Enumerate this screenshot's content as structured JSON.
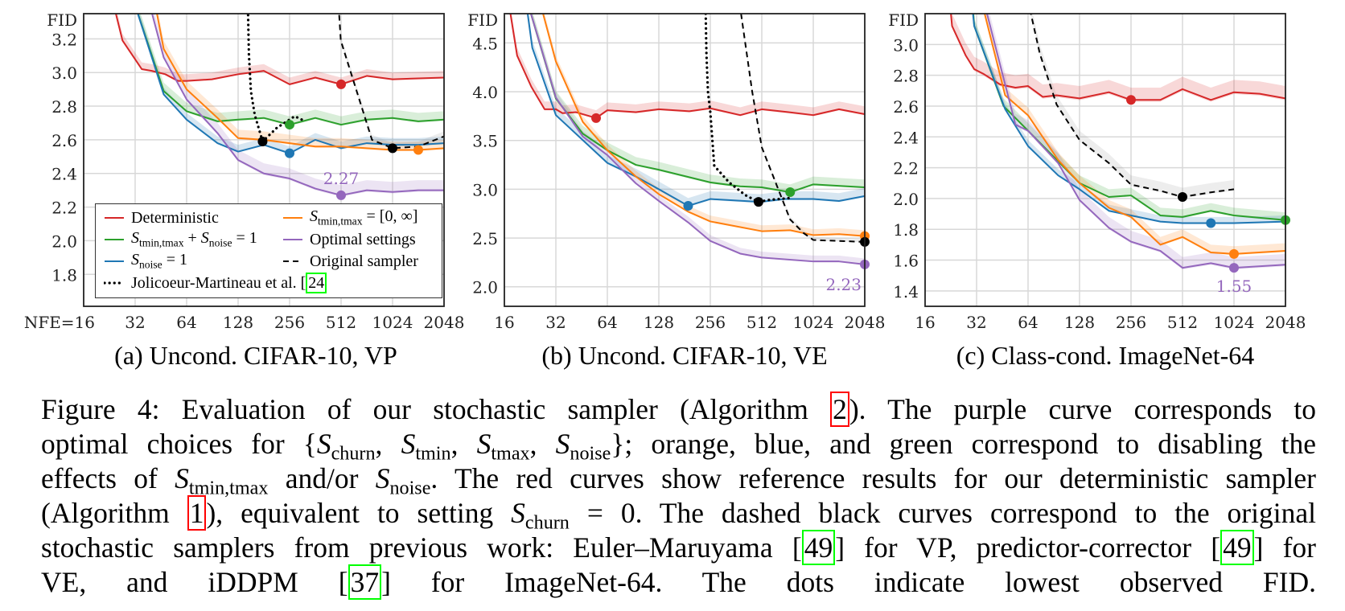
{
  "chart_data": [
    {
      "type": "line",
      "subcaption": "(a) Uncond. CIFAR-10, VP",
      "ylabel": "FID",
      "xscale": "log2",
      "xlim": [
        16,
        2048
      ],
      "ylim": [
        1.61,
        3.35
      ],
      "xticks": [
        16,
        32,
        64,
        128,
        256,
        512,
        1024,
        2048
      ],
      "xtick_labels": [
        "NFE=16",
        "32",
        "64",
        "128",
        "256",
        "512",
        "1024",
        "2048"
      ],
      "yticks": [
        1.8,
        2.0,
        2.2,
        2.4,
        2.6,
        2.8,
        3.0,
        3.2
      ],
      "ytick_labels": [
        "1.8",
        "2.0",
        "2.2",
        "2.4",
        "2.6",
        "2.8",
        "3.0",
        "3.2"
      ],
      "grid": true,
      "legend": "bottom",
      "series": [
        {
          "key": "red",
          "x": [
            24,
            27,
            35,
            40,
            48,
            57,
            64,
            90,
            128,
            181,
            256,
            362,
            512,
            724,
            1024,
            2048
          ],
          "y": [
            3.4,
            3.19,
            3.02,
            3.01,
            2.99,
            2.95,
            2.95,
            2.96,
            2.99,
            3.01,
            2.93,
            2.97,
            2.93,
            2.98,
            2.96,
            2.97
          ],
          "min": [
            512,
            2.93
          ],
          "band": 0.04
        },
        {
          "key": "green",
          "x": [
            32,
            47,
            64,
            97,
            128,
            181,
            256,
            362,
            512,
            724,
            1024,
            1448,
            2048
          ],
          "y": [
            3.4,
            2.89,
            2.77,
            2.71,
            2.72,
            2.73,
            2.69,
            2.73,
            2.69,
            2.72,
            2.73,
            2.71,
            2.72
          ],
          "min": [
            256,
            2.69
          ],
          "band": 0.05
        },
        {
          "key": "blue",
          "x": [
            32,
            47,
            64,
            97,
            128,
            181,
            256,
            362,
            512,
            724,
            1024,
            1448,
            2048
          ],
          "y": [
            3.4,
            2.87,
            2.72,
            2.58,
            2.53,
            2.57,
            2.52,
            2.6,
            2.55,
            2.58,
            2.57,
            2.57,
            2.58
          ],
          "min": [
            256,
            2.52
          ],
          "band": 0.04
        },
        {
          "key": "orange",
          "x": [
            42,
            47,
            64,
            97,
            128,
            181,
            256,
            362,
            512,
            724,
            1024,
            1448,
            2048
          ],
          "y": [
            3.4,
            3.14,
            2.9,
            2.73,
            2.61,
            2.6,
            2.58,
            2.56,
            2.56,
            2.55,
            2.54,
            2.54,
            2.55
          ],
          "min": [
            1448,
            2.54
          ],
          "band": 0.05
        },
        {
          "key": "purple",
          "x": [
            39,
            47,
            64,
            97,
            128,
            181,
            256,
            362,
            512,
            724,
            1024,
            1448,
            2048
          ],
          "y": [
            3.4,
            3.09,
            2.84,
            2.64,
            2.48,
            2.4,
            2.37,
            2.31,
            2.27,
            2.3,
            2.29,
            2.3,
            2.3
          ],
          "min": [
            512,
            2.27
          ],
          "band": 0.06
        },
        {
          "key": "dotted",
          "x": [
            146,
            148,
            152,
            160,
            178,
            215,
            274,
            317
          ],
          "y": [
            3.4,
            3.11,
            2.89,
            2.75,
            2.59,
            2.67,
            2.74,
            2.71
          ],
          "min": [
            178,
            2.59
          ],
          "band": 0
        },
        {
          "key": "dashed",
          "x": [
            495,
            510,
            776,
            1024,
            1448,
            2048
          ],
          "y": [
            3.4,
            3.19,
            2.6,
            2.55,
            2.56,
            2.62
          ],
          "min": [
            1024,
            2.55
          ],
          "band": 0.03
        }
      ],
      "annotation": {
        "text": "2.27",
        "x": 512,
        "y": 2.27,
        "position": "above"
      }
    },
    {
      "type": "line",
      "subcaption": "(b) Uncond. CIFAR-10, VE",
      "ylabel": "FID",
      "xscale": "log2",
      "xlim": [
        16,
        2048
      ],
      "ylim": [
        1.8,
        4.8
      ],
      "xticks": [
        16,
        32,
        64,
        128,
        256,
        512,
        1024,
        2048
      ],
      "xtick_labels": [
        "16",
        "32",
        "64",
        "128",
        "256",
        "512",
        "1024",
        "2048"
      ],
      "yticks": [
        2.0,
        2.5,
        3.0,
        3.5,
        4.0,
        4.5
      ],
      "ytick_labels": [
        "2.0",
        "2.5",
        "3.0",
        "3.5",
        "4.0",
        "4.5"
      ],
      "grid": true,
      "series": [
        {
          "key": "red",
          "x": [
            17,
            19,
            23,
            27.5,
            32,
            35,
            42,
            55,
            64,
            94,
            128,
            193,
            256,
            383,
            512,
            734,
            1024,
            1448,
            2048
          ],
          "y": [
            4.9,
            4.37,
            4.05,
            3.82,
            3.82,
            3.78,
            3.79,
            3.73,
            3.81,
            3.79,
            3.82,
            3.8,
            3.83,
            3.76,
            3.82,
            3.79,
            3.76,
            3.82,
            3.77
          ],
          "min": [
            55,
            3.73
          ],
          "band": 0.08
        },
        {
          "key": "green",
          "x": [
            22,
            32,
            46,
            64,
            94,
            128,
            256,
            383,
            512,
            750,
            1024,
            2048
          ],
          "y": [
            4.9,
            3.93,
            3.57,
            3.4,
            3.25,
            3.2,
            3.07,
            3.03,
            3.02,
            2.97,
            3.05,
            3.02
          ],
          "min": [
            750,
            2.97
          ],
          "band": 0.08
        },
        {
          "key": "blue",
          "x": [
            21.5,
            23.3,
            32,
            64,
            94,
            128,
            190,
            256,
            500,
            700,
            1024,
            1448,
            2048
          ],
          "y": [
            4.9,
            4.45,
            3.76,
            3.27,
            3.13,
            3.0,
            2.83,
            2.9,
            2.87,
            2.9,
            2.9,
            2.88,
            2.93
          ],
          "min": [
            190,
            2.83
          ],
          "band": 0.08
        },
        {
          "key": "orange",
          "x": [
            26,
            32,
            46,
            64,
            94,
            128,
            190,
            256,
            512,
            750,
            1024,
            1448,
            2048
          ],
          "y": [
            4.9,
            4.31,
            3.69,
            3.4,
            3.13,
            2.95,
            2.77,
            2.67,
            2.57,
            2.58,
            2.53,
            2.54,
            2.52
          ],
          "min": [
            2048,
            2.52
          ],
          "band": 0.06
        },
        {
          "key": "purple",
          "x": [
            22,
            32,
            46,
            64,
            94,
            128,
            190,
            256,
            383,
            512,
            1024,
            1448,
            2048
          ],
          "y": [
            4.9,
            3.94,
            3.54,
            3.35,
            3.06,
            2.88,
            2.66,
            2.47,
            2.34,
            2.3,
            2.26,
            2.26,
            2.23
          ],
          "min": [
            2048,
            2.23
          ],
          "band": 0.06
        },
        {
          "key": "dotted",
          "x": [
            240,
            243,
            248,
            256,
            270,
            330,
            410,
            490,
            560,
            750
          ],
          "y": [
            4.9,
            4.39,
            4.0,
            3.79,
            3.24,
            3.07,
            2.94,
            2.87,
            2.89,
            2.91
          ],
          "min": [
            490,
            2.87
          ],
          "band": 0
        },
        {
          "key": "dashed",
          "x": [
            380,
            450,
            512,
            750,
            900,
            1024,
            2048
          ],
          "y": [
            4.9,
            4.0,
            3.43,
            2.69,
            2.55,
            2.48,
            2.46
          ],
          "min": [
            2048,
            2.46
          ],
          "band": 0.03
        }
      ],
      "annotation": {
        "text": "2.23",
        "x": 2048,
        "y": 2.23,
        "position": "below-left"
      }
    },
    {
      "type": "line",
      "subcaption": "(c) Class-cond. ImageNet-64",
      "ylabel": "FID",
      "xscale": "log2",
      "xlim": [
        16,
        2048
      ],
      "ylim": [
        1.3,
        3.2
      ],
      "xticks": [
        16,
        32,
        64,
        128,
        256,
        512,
        1024,
        2048
      ],
      "xtick_labels": [
        "16",
        "32",
        "64",
        "128",
        "256",
        "512",
        "1024",
        "2048"
      ],
      "yticks": [
        1.4,
        1.6,
        1.8,
        2.0,
        2.2,
        2.4,
        2.6,
        2.8,
        3.0
      ],
      "ytick_labels": [
        "1.4",
        "1.6",
        "1.8",
        "2.0",
        "2.2",
        "2.4",
        "2.6",
        "2.8",
        "3.0"
      ],
      "grid": true,
      "series": [
        {
          "key": "red",
          "x": [
            22,
            23,
            27.6,
            31,
            35,
            44,
            54,
            64,
            78,
            94,
            128,
            190,
            256,
            380,
            512,
            750,
            1024,
            1448,
            2048
          ],
          "y": [
            3.35,
            3.12,
            2.93,
            2.84,
            2.81,
            2.74,
            2.72,
            2.73,
            2.66,
            2.67,
            2.65,
            2.69,
            2.64,
            2.64,
            2.71,
            2.64,
            2.69,
            2.68,
            2.65
          ],
          "min": [
            256,
            2.64
          ],
          "band": 0.08
        },
        {
          "key": "green",
          "x": [
            30,
            31,
            46,
            64,
            128,
            190,
            256,
            380,
            512,
            750,
            1024,
            2048
          ],
          "y": [
            3.35,
            3.12,
            2.6,
            2.44,
            2.1,
            2.01,
            2.02,
            1.89,
            1.88,
            1.92,
            1.89,
            1.86
          ],
          "min": [
            2048,
            1.86
          ],
          "band": 0.05
        },
        {
          "key": "blue",
          "x": [
            29.5,
            31,
            47,
            64,
            96,
            128,
            190,
            256,
            380,
            512,
            750,
            1024,
            2048
          ],
          "y": [
            3.35,
            3.12,
            2.58,
            2.34,
            2.15,
            2.06,
            1.92,
            1.89,
            1.85,
            1.84,
            1.84,
            1.84,
            1.85
          ],
          "min": [
            750,
            1.84
          ],
          "band": 0.04
        },
        {
          "key": "orange",
          "x": [
            33,
            47,
            64,
            96,
            128,
            190,
            256,
            380,
            512,
            750,
            1024,
            2048
          ],
          "y": [
            3.35,
            2.67,
            2.54,
            2.25,
            2.1,
            1.94,
            1.88,
            1.7,
            1.75,
            1.65,
            1.64,
            1.66
          ],
          "min": [
            1024,
            1.64
          ],
          "band": 0.05
        },
        {
          "key": "purple",
          "x": [
            34,
            54,
            64,
            96,
            128,
            190,
            256,
            380,
            512,
            750,
            1024,
            2048
          ],
          "y": [
            3.35,
            2.48,
            2.44,
            2.23,
            1.99,
            1.81,
            1.72,
            1.66,
            1.55,
            1.58,
            1.55,
            1.57
          ],
          "min": [
            1024,
            1.55
          ],
          "band": 0.07
        },
        {
          "key": "dashed",
          "x": [
            62,
            75,
            94,
            128,
            190,
            256,
            380,
            512,
            750,
            1024
          ],
          "y": [
            3.35,
            2.94,
            2.61,
            2.38,
            2.23,
            2.09,
            2.05,
            2.01,
            2.04,
            2.06
          ],
          "min": [
            512,
            2.01
          ],
          "band": 0.06
        }
      ],
      "annotation": {
        "text": "1.55",
        "x": 1024,
        "y": 1.55,
        "position": "below"
      }
    }
  ],
  "styles": {
    "red": {
      "color": "#d62728",
      "dash": "solid"
    },
    "green": {
      "color": "#2ca02c",
      "dash": "solid"
    },
    "blue": {
      "color": "#1f77b4",
      "dash": "solid"
    },
    "orange": {
      "color": "#ff7f0e",
      "dash": "solid"
    },
    "purple": {
      "color": "#9467bd",
      "dash": "solid"
    },
    "dotted": {
      "color": "#000000",
      "dash": "dotted"
    },
    "dashed": {
      "color": "#000000",
      "dash": "dashed"
    }
  },
  "legend": [
    {
      "key": "red",
      "parts": [
        {
          "t": "Deterministic"
        }
      ]
    },
    {
      "key": "green",
      "parts": [
        {
          "m": "S",
          "sub": "tmin,tmax"
        },
        {
          "t": " + "
        },
        {
          "m": "S",
          "sub": "noise"
        },
        {
          "t": " = 1"
        }
      ]
    },
    {
      "key": "blue",
      "parts": [
        {
          "m": "S",
          "sub": "noise"
        },
        {
          "t": " = 1"
        }
      ]
    },
    {
      "key": "dotted",
      "parts": [
        {
          "t": "Jolicoeur-Martineau et al. ["
        },
        {
          "ref": "24",
          "color": "#00ff00"
        }
      ]
    },
    {
      "key": "orange",
      "parts": [
        {
          "m": "S",
          "sub": "tmin,tmax"
        },
        {
          "t": " = [0, ∞]"
        }
      ]
    },
    {
      "key": "purple",
      "parts": [
        {
          "t": "Optimal settings"
        }
      ]
    },
    {
      "key": "dashed",
      "parts": [
        {
          "t": "Original sampler"
        }
      ]
    }
  ],
  "caption": [
    [
      {
        "t": "Figure 4: Evaluation of our stochastic sampler (Algorithm "
      },
      {
        "ref": "2",
        "color": "#ff0000"
      },
      {
        "t": "). The purple curve corresponds to"
      }
    ],
    [
      {
        "t": "optimal choices for {"
      },
      {
        "m": "S",
        "sub": "churn"
      },
      {
        "t": ", "
      },
      {
        "m": "S",
        "sub": "tmin"
      },
      {
        "t": ", "
      },
      {
        "m": "S",
        "sub": "tmax"
      },
      {
        "t": ", "
      },
      {
        "m": "S",
        "sub": "noise"
      },
      {
        "t": "}; orange, blue, and green correspond to disabling the"
      }
    ],
    [
      {
        "t": "effects of "
      },
      {
        "m": "S",
        "sub": "tmin,tmax"
      },
      {
        "t": " and/or "
      },
      {
        "m": "S",
        "sub": "noise"
      },
      {
        "t": ". The red curves show reference results for our deterministic sampler"
      }
    ],
    [
      {
        "t": "(Algorithm "
      },
      {
        "ref": "1",
        "color": "#ff0000"
      },
      {
        "t": "), equivalent to setting "
      },
      {
        "m": "S",
        "sub": "churn"
      },
      {
        "t": " = 0. The dashed black curves correspond to the original"
      }
    ],
    [
      {
        "t": "stochastic samplers from previous work: Euler–Maruyama ["
      },
      {
        "ref": "49",
        "color": "#00ff00"
      },
      {
        "t": "] for VP, predictor-corrector ["
      },
      {
        "ref": "49",
        "color": "#00ff00"
      },
      {
        "t": "] for"
      }
    ],
    [
      {
        "t": "VE, and iDDPM ["
      },
      {
        "ref": "37",
        "color": "#00ff00"
      },
      {
        "t": "] for ImageNet-64. The dots indicate lowest observed FID."
      }
    ]
  ]
}
